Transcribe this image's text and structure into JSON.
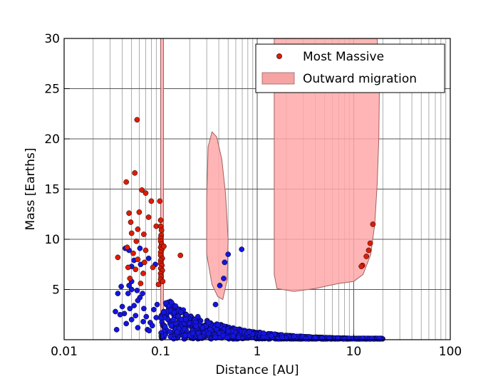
{
  "chart_data": {
    "type": "scatter",
    "xlabel": "Distance [AU]",
    "ylabel": "Mass [Earths]",
    "xscale": "log",
    "xlim": [
      0.01,
      100
    ],
    "ylim": [
      0,
      30
    ],
    "x_ticks": [
      {
        "value": 0.01,
        "label": "0.01"
      },
      {
        "value": 0.1,
        "label": "0.1"
      },
      {
        "value": 1,
        "label": "1"
      },
      {
        "value": 10,
        "label": "10"
      },
      {
        "value": 100,
        "label": "100"
      }
    ],
    "y_ticks": [
      {
        "value": 5,
        "label": "5"
      },
      {
        "value": 10,
        "label": "10"
      },
      {
        "value": 15,
        "label": "15"
      },
      {
        "value": 20,
        "label": "20"
      },
      {
        "value": 25,
        "label": "25"
      },
      {
        "value": 30,
        "label": "30"
      }
    ],
    "grid": true,
    "legend": {
      "placement": "top-right",
      "entries": [
        {
          "label": "Most Massive",
          "kind": "marker",
          "color": "#dd1c05"
        },
        {
          "label": "Outward migration",
          "kind": "patch",
          "color": "#f5a3a3"
        }
      ]
    },
    "colors": {
      "most_massive": "#dd1c05",
      "population": "#1515e0",
      "migration_fill": "#ffa8a8",
      "migration_edge": "#a06060"
    },
    "regions": [
      {
        "name": "Outward migration",
        "polygon": [
          [
            0.1,
            30
          ],
          [
            0.107,
            30
          ],
          [
            0.107,
            0.4
          ],
          [
            0.1,
            0.4
          ]
        ]
      },
      {
        "name": "Outward migration",
        "polygon": [
          [
            0.31,
            19.2
          ],
          [
            0.34,
            20.7
          ],
          [
            0.38,
            20.2
          ],
          [
            0.43,
            18.0
          ],
          [
            0.47,
            14.5
          ],
          [
            0.5,
            10.0
          ],
          [
            0.49,
            6.0
          ],
          [
            0.44,
            4.0
          ],
          [
            0.39,
            4.3
          ],
          [
            0.34,
            5.5
          ],
          [
            0.3,
            8.5
          ],
          [
            0.3,
            14.0
          ]
        ]
      },
      {
        "name": "Outward migration",
        "polygon": [
          [
            1.5,
            30
          ],
          [
            17.5,
            30
          ],
          [
            18.5,
            26.0
          ],
          [
            18.2,
            20.0
          ],
          [
            17.5,
            15.5
          ],
          [
            16.5,
            11.5
          ],
          [
            15.0,
            8.5
          ],
          [
            12.5,
            6.5
          ],
          [
            10.0,
            5.8
          ],
          [
            7.0,
            5.6
          ],
          [
            4.0,
            5.1
          ],
          [
            2.4,
            4.8
          ],
          [
            1.6,
            5.1
          ],
          [
            1.5,
            6.5
          ],
          [
            1.5,
            20.0
          ]
        ]
      }
    ],
    "series": [
      {
        "name": "Most Massive",
        "color": "#dd1c05",
        "points": [
          [
            0.057,
            21.9
          ],
          [
            0.054,
            16.6
          ],
          [
            0.044,
            15.7
          ],
          [
            0.064,
            14.9
          ],
          [
            0.07,
            14.6
          ],
          [
            0.08,
            13.8
          ],
          [
            0.098,
            13.8
          ],
          [
            0.047,
            12.6
          ],
          [
            0.06,
            12.7
          ],
          [
            0.075,
            12.2
          ],
          [
            0.1,
            11.9
          ],
          [
            0.049,
            11.7
          ],
          [
            0.09,
            11.3
          ],
          [
            0.1,
            11.3
          ],
          [
            0.058,
            11.0
          ],
          [
            0.102,
            10.9
          ],
          [
            0.05,
            10.6
          ],
          [
            0.067,
            10.5
          ],
          [
            0.101,
            10.4
          ],
          [
            0.1,
            10.1
          ],
          [
            0.056,
            9.8
          ],
          [
            0.1,
            9.8
          ],
          [
            0.102,
            9.5
          ],
          [
            0.045,
            9.2
          ],
          [
            0.1,
            9.2
          ],
          [
            0.103,
            9.0
          ],
          [
            0.07,
            8.9
          ],
          [
            0.1,
            8.7
          ],
          [
            0.052,
            8.6
          ],
          [
            0.1,
            8.4
          ],
          [
            0.036,
            8.2
          ],
          [
            0.104,
            8.1
          ],
          [
            0.058,
            8.0
          ],
          [
            0.1,
            7.9
          ],
          [
            0.068,
            7.7
          ],
          [
            0.1,
            7.6
          ],
          [
            0.103,
            7.4
          ],
          [
            0.046,
            7.2
          ],
          [
            0.083,
            7.2
          ],
          [
            0.1,
            7.1
          ],
          [
            0.055,
            7.0
          ],
          [
            0.104,
            6.9
          ],
          [
            0.1,
            6.6
          ],
          [
            0.066,
            6.6
          ],
          [
            0.101,
            6.3
          ],
          [
            0.048,
            6.1
          ],
          [
            0.1,
            6.0
          ],
          [
            0.105,
            5.8
          ],
          [
            0.062,
            5.6
          ],
          [
            0.095,
            5.5
          ],
          [
            0.16,
            8.4
          ],
          [
            0.108,
            9.3
          ],
          [
            15.8,
            11.5
          ],
          [
            14.8,
            9.6
          ],
          [
            14.3,
            8.9
          ],
          [
            13.5,
            8.3
          ],
          [
            12.3,
            7.4
          ],
          [
            12.0,
            7.3
          ]
        ]
      },
      {
        "name": "",
        "color": "#1515e0",
        "points": [
          [
            0.043,
            9.1
          ],
          [
            0.047,
            8.9
          ],
          [
            0.061,
            9.1
          ],
          [
            0.075,
            8.1
          ],
          [
            0.053,
            7.9
          ],
          [
            0.062,
            7.5
          ],
          [
            0.05,
            7.3
          ],
          [
            0.088,
            7.5
          ],
          [
            0.05,
            5.8
          ],
          [
            0.047,
            5.4
          ],
          [
            0.039,
            5.3
          ],
          [
            0.05,
            5.0
          ],
          [
            0.057,
            4.9
          ],
          [
            0.046,
            4.6
          ],
          [
            0.036,
            4.6
          ],
          [
            0.065,
            4.6
          ],
          [
            0.061,
            4.2
          ],
          [
            0.058,
            3.9
          ],
          [
            0.053,
            3.4
          ],
          [
            0.04,
            3.3
          ],
          [
            0.048,
            3.1
          ],
          [
            0.067,
            3.1
          ],
          [
            0.085,
            3.0
          ],
          [
            0.034,
            2.8
          ],
          [
            0.042,
            2.6
          ],
          [
            0.038,
            2.5
          ],
          [
            0.055,
            2.4
          ],
          [
            0.071,
            2.3
          ],
          [
            0.05,
            2.0
          ],
          [
            0.066,
            1.8
          ],
          [
            0.078,
            1.7
          ],
          [
            0.044,
            1.6
          ],
          [
            0.035,
            1.0
          ],
          [
            0.073,
            1.0
          ],
          [
            0.076,
            0.9
          ],
          [
            0.082,
            1.4
          ],
          [
            0.058,
            1.2
          ],
          [
            0.09,
            2.2
          ],
          [
            0.092,
            3.5
          ],
          [
            0.37,
            3.5
          ],
          [
            0.41,
            5.4
          ],
          [
            0.45,
            6.1
          ],
          [
            0.46,
            7.7
          ],
          [
            0.5,
            8.5
          ],
          [
            0.69,
            9.0
          ]
        ]
      }
    ]
  }
}
